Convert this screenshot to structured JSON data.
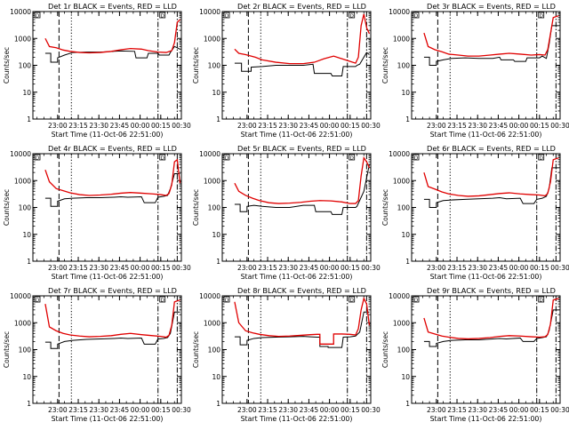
{
  "colors": {
    "events": "#000000",
    "lld": "#e00000",
    "background": "#ffffff"
  },
  "common": {
    "xlabel": "Start Time (11-Oct-06 22:51:00)",
    "ylabel": "Counts/sec",
    "x_ticks": [
      "23:00",
      "23:15",
      "23:30",
      "23:45",
      "00:00",
      "00:15",
      "00:30"
    ],
    "y_ticks": [
      "1",
      "10",
      "100",
      "1000",
      "10000"
    ],
    "marker_left": "D",
    "marker_right": "D"
  },
  "chart_data": [
    {
      "type": "line",
      "title": "Det 1r BLACK = Events, RED = LLD",
      "xlim": [
        -9,
        99
      ],
      "ylim": [
        1,
        10000
      ],
      "yscale": "log",
      "series": [
        {
          "name": "Events",
          "x": [
            0,
            4,
            4,
            9,
            9,
            14,
            20,
            30,
            40,
            50,
            55,
            65,
            66,
            74,
            75,
            82,
            83,
            90,
            91,
            94,
            98
          ],
          "y": [
            280,
            280,
            130,
            130,
            190,
            240,
            300,
            310,
            310,
            330,
            340,
            330,
            190,
            190,
            280,
            280,
            240,
            240,
            300,
            500,
            400
          ]
        },
        {
          "name": "LLD",
          "x": [
            0,
            3,
            8,
            13,
            18,
            25,
            32,
            40,
            48,
            55,
            62,
            70,
            75,
            82,
            88,
            92,
            94,
            96,
            98
          ],
          "y": [
            1000,
            500,
            450,
            370,
            330,
            300,
            290,
            300,
            330,
            380,
            420,
            400,
            350,
            310,
            300,
            350,
            700,
            4000,
            5000
          ]
        }
      ],
      "vlines": [
        {
          "x": 10,
          "style": "dashed"
        },
        {
          "x": 19,
          "style": "dotted"
        },
        {
          "x": 82,
          "style": "dashdot"
        },
        {
          "x": 96,
          "style": "dashdot"
        }
      ]
    },
    {
      "type": "line",
      "title": "Det 2r BLACK = Events, RED = LLD",
      "xlim": [
        -9,
        99
      ],
      "ylim": [
        1,
        10000
      ],
      "yscale": "log",
      "series": [
        {
          "name": "Events",
          "x": [
            0,
            5,
            5,
            12,
            12,
            20,
            30,
            40,
            50,
            57,
            58,
            70,
            71,
            78,
            79,
            88,
            89,
            91,
            96,
            98
          ],
          "y": [
            120,
            120,
            60,
            60,
            85,
            90,
            100,
            100,
            100,
            110,
            50,
            50,
            40,
            40,
            90,
            90,
            100,
            110,
            300,
            250
          ]
        },
        {
          "name": "LLD",
          "x": [
            0,
            3,
            8,
            15,
            20,
            30,
            40,
            50,
            58,
            65,
            72,
            78,
            84,
            88,
            90,
            92,
            94,
            96,
            98
          ],
          "y": [
            400,
            280,
            250,
            200,
            160,
            130,
            115,
            115,
            130,
            175,
            220,
            175,
            140,
            120,
            200,
            3000,
            8000,
            2500,
            1500
          ]
        }
      ],
      "vlines": [
        {
          "x": 10,
          "style": "dashed"
        },
        {
          "x": 19,
          "style": "dotted"
        },
        {
          "x": 82,
          "style": "dashdot"
        },
        {
          "x": 96,
          "style": "dashdot"
        }
      ]
    },
    {
      "type": "line",
      "title": "Det 3r BLACK = Events, RED = LLD",
      "xlim": [
        -9,
        99
      ],
      "ylim": [
        1,
        10000
      ],
      "yscale": "log",
      "series": [
        {
          "name": "Events",
          "x": [
            0,
            4,
            4,
            9,
            9,
            14,
            20,
            30,
            40,
            50,
            55,
            56,
            65,
            66,
            74,
            75,
            84,
            86,
            89,
            91,
            93,
            98
          ],
          "y": [
            200,
            200,
            100,
            100,
            140,
            160,
            180,
            190,
            180,
            180,
            200,
            160,
            160,
            140,
            140,
            190,
            190,
            220,
            180,
            600,
            3000,
            3000
          ]
        },
        {
          "name": "LLD",
          "x": [
            0,
            3,
            8,
            13,
            18,
            25,
            32,
            40,
            48,
            55,
            62,
            70,
            78,
            84,
            88,
            90,
            92,
            94,
            98
          ],
          "y": [
            1600,
            500,
            380,
            320,
            260,
            240,
            220,
            220,
            240,
            260,
            280,
            260,
            240,
            250,
            240,
            380,
            1500,
            6000,
            7000
          ]
        }
      ],
      "vlines": [
        {
          "x": 10,
          "style": "dashed"
        },
        {
          "x": 19,
          "style": "dotted"
        },
        {
          "x": 82,
          "style": "dashdot"
        },
        {
          "x": 96,
          "style": "dashdot"
        }
      ]
    },
    {
      "type": "line",
      "title": "Det 4r BLACK = Events, RED = LLD",
      "xlim": [
        -9,
        99
      ],
      "ylim": [
        1,
        10000
      ],
      "yscale": "log",
      "series": [
        {
          "name": "Events",
          "x": [
            0,
            4,
            4,
            9,
            9,
            14,
            20,
            30,
            40,
            50,
            55,
            60,
            70,
            72,
            80,
            82,
            86,
            89,
            91,
            94,
            98
          ],
          "y": [
            220,
            220,
            110,
            110,
            170,
            210,
            220,
            230,
            230,
            240,
            250,
            240,
            250,
            150,
            150,
            240,
            260,
            280,
            500,
            1800,
            1800
          ]
        },
        {
          "name": "LLD",
          "x": [
            0,
            3,
            8,
            13,
            18,
            25,
            32,
            40,
            48,
            55,
            62,
            70,
            78,
            84,
            88,
            90,
            92,
            94,
            96,
            98
          ],
          "y": [
            2500,
            900,
            500,
            420,
            350,
            300,
            280,
            290,
            310,
            340,
            360,
            340,
            320,
            300,
            280,
            330,
            700,
            5000,
            6000,
            800
          ]
        }
      ],
      "vlines": [
        {
          "x": 10,
          "style": "dashed"
        },
        {
          "x": 19,
          "style": "dotted"
        },
        {
          "x": 82,
          "style": "dashdot"
        },
        {
          "x": 96,
          "style": "dashdot"
        }
      ]
    },
    {
      "type": "line",
      "title": "Det 5r BLACK = Events, RED = LLD",
      "xlim": [
        -9,
        99
      ],
      "ylim": [
        1,
        10000
      ],
      "yscale": "log",
      "series": [
        {
          "name": "Events",
          "x": [
            0,
            4,
            4,
            9,
            9,
            14,
            20,
            30,
            40,
            50,
            58,
            59,
            70,
            71,
            78,
            79,
            88,
            89,
            94,
            98
          ],
          "y": [
            130,
            130,
            70,
            70,
            110,
            120,
            110,
            100,
            100,
            120,
            120,
            70,
            70,
            55,
            55,
            100,
            100,
            110,
            400,
            4000
          ]
        },
        {
          "name": "LLD",
          "x": [
            0,
            3,
            8,
            13,
            18,
            25,
            32,
            40,
            48,
            55,
            62,
            70,
            78,
            84,
            88,
            90,
            92,
            94,
            96,
            98
          ],
          "y": [
            800,
            400,
            280,
            220,
            180,
            150,
            140,
            145,
            155,
            170,
            180,
            175,
            160,
            140,
            140,
            180,
            1500,
            7000,
            5000,
            3000
          ]
        }
      ],
      "vlines": [
        {
          "x": 10,
          "style": "dashed"
        },
        {
          "x": 19,
          "style": "dotted"
        },
        {
          "x": 82,
          "style": "dashdot"
        },
        {
          "x": 96,
          "style": "dashdot"
        }
      ]
    },
    {
      "type": "line",
      "title": "Det 6r BLACK = Events, RED = LLD",
      "xlim": [
        -9,
        99
      ],
      "ylim": [
        1,
        10000
      ],
      "yscale": "log",
      "series": [
        {
          "name": "Events",
          "x": [
            0,
            4,
            4,
            9,
            9,
            14,
            20,
            30,
            40,
            50,
            55,
            60,
            70,
            72,
            80,
            82,
            86,
            89,
            91,
            93,
            98
          ],
          "y": [
            200,
            200,
            100,
            100,
            150,
            180,
            190,
            200,
            210,
            220,
            230,
            210,
            220,
            140,
            140,
            200,
            220,
            260,
            500,
            3000,
            3000
          ]
        },
        {
          "name": "LLD",
          "x": [
            0,
            3,
            8,
            13,
            18,
            25,
            32,
            40,
            48,
            55,
            62,
            70,
            78,
            84,
            88,
            90,
            92,
            94,
            98
          ],
          "y": [
            2000,
            600,
            480,
            380,
            320,
            280,
            260,
            270,
            300,
            330,
            350,
            320,
            300,
            290,
            270,
            330,
            900,
            6000,
            7000
          ]
        }
      ],
      "vlines": [
        {
          "x": 10,
          "style": "dashed"
        },
        {
          "x": 19,
          "style": "dotted"
        },
        {
          "x": 82,
          "style": "dashdot"
        },
        {
          "x": 96,
          "style": "dashdot"
        }
      ]
    },
    {
      "type": "line",
      "title": "Det 7r BLACK = Events, RED = LLD",
      "xlim": [
        -9,
        99
      ],
      "ylim": [
        1,
        10000
      ],
      "yscale": "log",
      "series": [
        {
          "name": "Events",
          "x": [
            0,
            4,
            4,
            9,
            9,
            14,
            20,
            30,
            40,
            50,
            55,
            60,
            70,
            72,
            80,
            82,
            86,
            89,
            91,
            94,
            98
          ],
          "y": [
            190,
            190,
            110,
            110,
            160,
            200,
            220,
            240,
            250,
            260,
            270,
            260,
            270,
            160,
            160,
            250,
            260,
            280,
            400,
            2500,
            2500
          ]
        },
        {
          "name": "LLD",
          "x": [
            0,
            3,
            8,
            13,
            18,
            25,
            32,
            40,
            48,
            55,
            62,
            70,
            78,
            84,
            88,
            90,
            92,
            94,
            98
          ],
          "y": [
            5000,
            700,
            500,
            400,
            350,
            320,
            300,
            310,
            330,
            370,
            400,
            360,
            330,
            310,
            290,
            340,
            800,
            6000,
            7000
          ]
        }
      ],
      "vlines": [
        {
          "x": 10,
          "style": "dashed"
        },
        {
          "x": 19,
          "style": "dotted"
        },
        {
          "x": 82,
          "style": "dashdot"
        },
        {
          "x": 96,
          "style": "dashdot"
        }
      ]
    },
    {
      "type": "line",
      "title": "Det 8r BLACK = Events, RED = LLD",
      "xlim": [
        -9,
        99
      ],
      "ylim": [
        1,
        10000
      ],
      "yscale": "log",
      "series": [
        {
          "name": "Events",
          "x": [
            0,
            4,
            4,
            9,
            9,
            14,
            20,
            30,
            40,
            50,
            55,
            60,
            62,
            62,
            68,
            68,
            78,
            79,
            84,
            88,
            91,
            94,
            98
          ],
          "y": [
            300,
            300,
            150,
            150,
            220,
            260,
            280,
            290,
            300,
            310,
            300,
            290,
            290,
            130,
            130,
            120,
            120,
            290,
            300,
            320,
            450,
            2500,
            2500
          ]
        },
        {
          "name": "LLD",
          "x": [
            0,
            3,
            8,
            13,
            18,
            25,
            32,
            40,
            48,
            55,
            60,
            62,
            62,
            70,
            72,
            72,
            78,
            84,
            88,
            90,
            92,
            94,
            96,
            98
          ],
          "y": [
            6000,
            1000,
            500,
            420,
            370,
            330,
            310,
            320,
            340,
            360,
            370,
            370,
            160,
            160,
            160,
            380,
            380,
            370,
            350,
            600,
            3000,
            8000,
            5000,
            800
          ]
        }
      ],
      "vlines": [
        {
          "x": 10,
          "style": "dashed"
        },
        {
          "x": 19,
          "style": "dotted"
        },
        {
          "x": 82,
          "style": "dashdot"
        },
        {
          "x": 96,
          "style": "dashdot"
        }
      ]
    },
    {
      "type": "line",
      "title": "Det 9r BLACK = Events, RED = LLD",
      "xlim": [
        -9,
        99
      ],
      "ylim": [
        1,
        10000
      ],
      "yscale": "log",
      "series": [
        {
          "name": "Events",
          "x": [
            0,
            4,
            4,
            9,
            9,
            14,
            20,
            30,
            40,
            50,
            55,
            60,
            70,
            72,
            80,
            82,
            86,
            89,
            91,
            94,
            98
          ],
          "y": [
            200,
            200,
            130,
            130,
            170,
            200,
            220,
            230,
            230,
            250,
            260,
            250,
            270,
            200,
            200,
            260,
            280,
            300,
            500,
            3000,
            3000
          ]
        },
        {
          "name": "LLD",
          "x": [
            0,
            3,
            8,
            13,
            18,
            25,
            32,
            40,
            48,
            55,
            62,
            70,
            78,
            84,
            88,
            90,
            92,
            94,
            98
          ],
          "y": [
            1500,
            450,
            380,
            320,
            290,
            260,
            250,
            260,
            280,
            310,
            330,
            320,
            300,
            290,
            300,
            360,
            900,
            7000,
            8000
          ]
        }
      ],
      "vlines": [
        {
          "x": 10,
          "style": "dashed"
        },
        {
          "x": 19,
          "style": "dotted"
        },
        {
          "x": 82,
          "style": "dashdot"
        },
        {
          "x": 96,
          "style": "dashdot"
        }
      ]
    }
  ]
}
